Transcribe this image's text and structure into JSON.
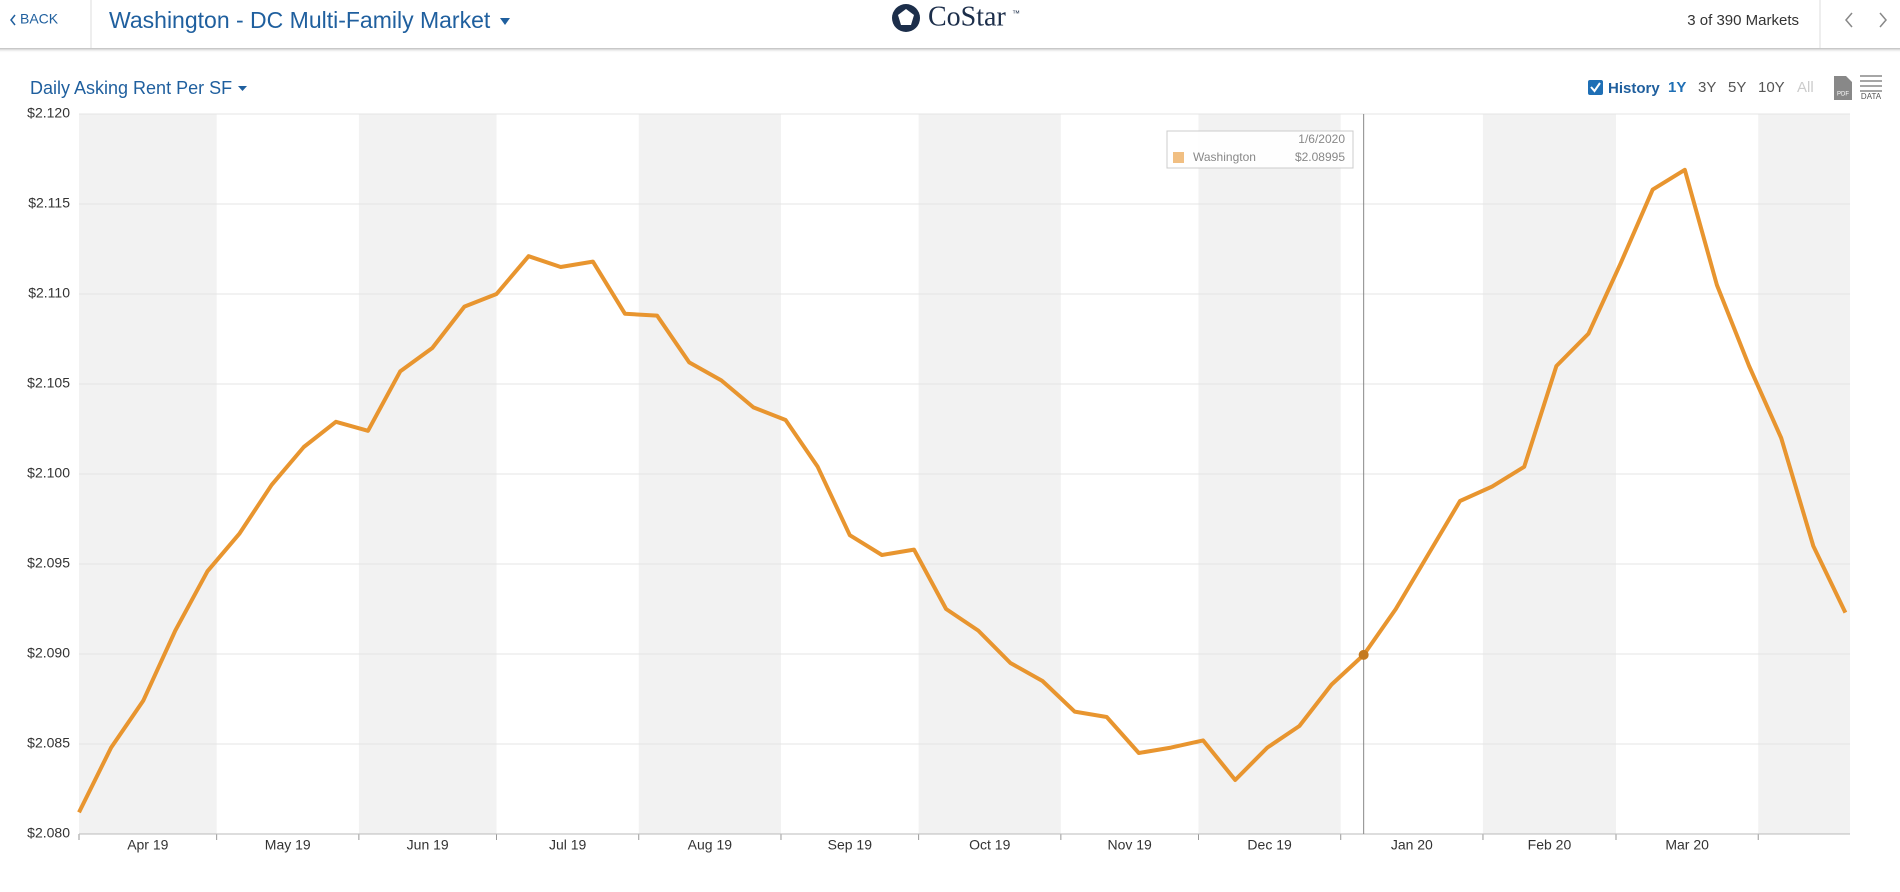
{
  "header": {
    "back": "BACK",
    "title": "Washington - DC Multi-Family Market",
    "brand": "CoStar",
    "trademark": "™",
    "position": "3 of 390 Markets"
  },
  "toolbar": {
    "metric": "Daily Asking Rent Per SF",
    "history": "History",
    "ranges": [
      "1Y",
      "3Y",
      "5Y",
      "10Y",
      "All"
    ],
    "pdf": "PDF",
    "data": "DATA"
  },
  "chart_data": {
    "type": "line",
    "x": [
      "4/1/2019",
      "4/8/2019",
      "4/15/2019",
      "4/22/2019",
      "4/29/2019",
      "5/6/2019",
      "5/13/2019",
      "5/20/2019",
      "5/27/2019",
      "6/3/2019",
      "6/10/2019",
      "6/17/2019",
      "6/24/2019",
      "7/1/2019",
      "7/8/2019",
      "7/15/2019",
      "7/22/2019",
      "7/29/2019",
      "8/5/2019",
      "8/12/2019",
      "8/19/2019",
      "8/26/2019",
      "9/2/2019",
      "9/9/2019",
      "9/16/2019",
      "9/23/2019",
      "9/30/2019",
      "10/7/2019",
      "10/14/2019",
      "10/21/2019",
      "10/28/2019",
      "11/4/2019",
      "11/11/2019",
      "11/18/2019",
      "11/25/2019",
      "12/2/2019",
      "12/9/2019",
      "12/16/2019",
      "12/23/2019",
      "12/30/2019",
      "1/6/2020",
      "1/13/2020",
      "1/20/2020",
      "1/27/2020",
      "2/3/2020",
      "2/10/2020",
      "2/17/2020",
      "2/24/2020",
      "3/2/2020",
      "3/9/2020",
      "3/16/2020",
      "3/23/2020",
      "3/30/2020",
      "4/6/2020",
      "4/13/2020",
      "4/20/2020"
    ],
    "series": [
      {
        "name": "Washington",
        "color": "#e8952f",
        "values": [
          2.0812,
          2.0848,
          2.0874,
          2.0913,
          2.0946,
          2.0967,
          2.0994,
          2.1015,
          2.1029,
          2.1024,
          2.1057,
          2.107,
          2.1093,
          2.11,
          2.1121,
          2.1115,
          2.1118,
          2.1089,
          2.1088,
          2.1062,
          2.1052,
          2.1037,
          2.103,
          2.1004,
          2.0966,
          2.0955,
          2.0958,
          2.0925,
          2.0913,
          2.0895,
          2.0885,
          2.0868,
          2.0865,
          2.0845,
          2.0848,
          2.0852,
          2.083,
          2.0848,
          2.086,
          2.0883,
          2.08995,
          2.0925,
          2.0955,
          2.0985,
          2.0993,
          2.1004,
          2.106,
          2.1078,
          2.1117,
          2.1158,
          2.1169,
          2.1105,
          2.106,
          2.102,
          2.096,
          2.0923
        ]
      }
    ],
    "xlim": [
      "4/1/2019",
      "4/21/2020"
    ],
    "xticks": [
      {
        "value": "4/1/2019",
        "label": "Apr 19"
      },
      {
        "value": "5/1/2019",
        "label": "May 19"
      },
      {
        "value": "6/1/2019",
        "label": "Jun 19"
      },
      {
        "value": "7/1/2019",
        "label": "Jul 19"
      },
      {
        "value": "8/1/2019",
        "label": "Aug 19"
      },
      {
        "value": "9/1/2019",
        "label": "Sep 19"
      },
      {
        "value": "10/1/2019",
        "label": "Oct 19"
      },
      {
        "value": "11/1/2019",
        "label": "Nov 19"
      },
      {
        "value": "12/1/2019",
        "label": "Dec 19"
      },
      {
        "value": "1/1/2020",
        "label": "Jan 20"
      },
      {
        "value": "2/1/2020",
        "label": "Feb 20"
      },
      {
        "value": "3/1/2020",
        "label": "Mar 20"
      },
      {
        "value": "4/1/2020",
        "label": null
      }
    ],
    "ylim": [
      2.08,
      2.12
    ],
    "yticks": [
      {
        "value": 2.08,
        "label": "$2.080"
      },
      {
        "value": 2.085,
        "label": "$2.085"
      },
      {
        "value": 2.09,
        "label": "$2.090"
      },
      {
        "value": 2.095,
        "label": "$2.095"
      },
      {
        "value": 2.1,
        "label": "$2.100"
      },
      {
        "value": 2.105,
        "label": "$2.105"
      },
      {
        "value": 2.11,
        "label": "$2.110"
      },
      {
        "value": 2.115,
        "label": "$2.115"
      },
      {
        "value": 2.12,
        "label": "$2.120"
      }
    ],
    "grid": true,
    "tooltip": {
      "x": "1/6/2020",
      "value_label": "$2.08995"
    }
  }
}
